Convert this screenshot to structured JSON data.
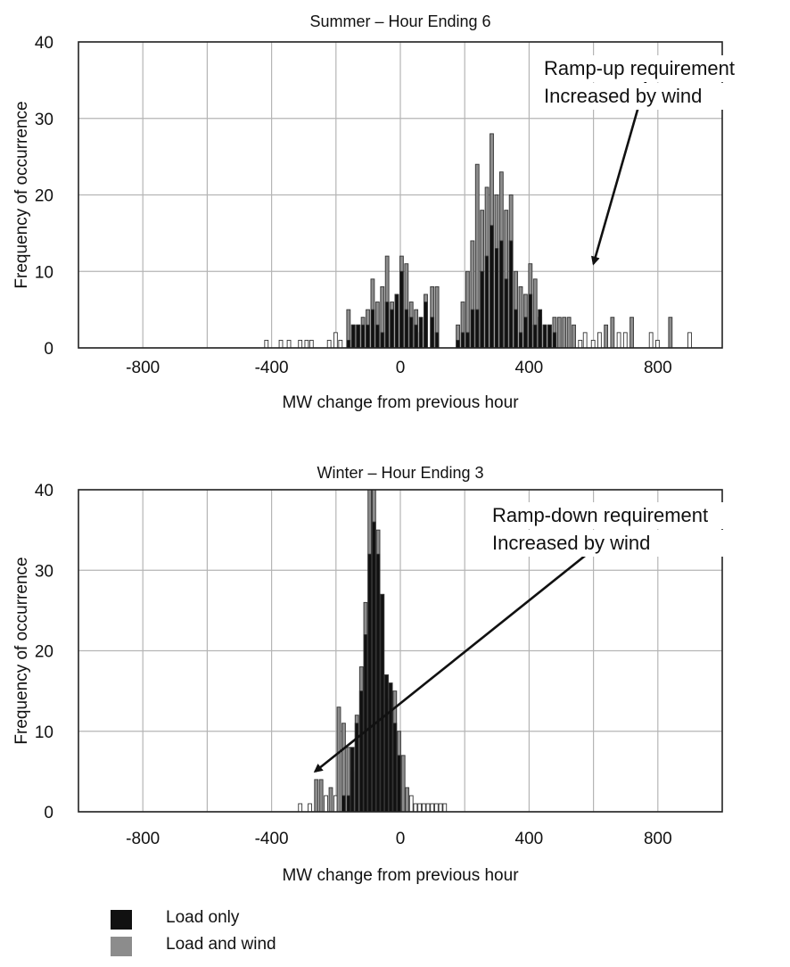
{
  "colors": {
    "load_only": "#111111",
    "load_and_wind": "#8c8c8c",
    "grid": "#b5b5b5",
    "axis": "#222222",
    "annotation": "#111111"
  },
  "legend": {
    "items": [
      {
        "label": "Load only",
        "color": "#111111"
      },
      {
        "label": "Load and wind",
        "color": "#8c8c8c"
      }
    ]
  },
  "chart_data": [
    {
      "type": "bar",
      "title": "Summer – Hour Ending 6",
      "xlabel": "MW change from previous hour",
      "ylabel": "Frequency of occurrence",
      "xlim": [
        -1000,
        1000
      ],
      "ylim": [
        0,
        40
      ],
      "xticks": [
        "-800",
        "-400",
        "0",
        "400",
        "800"
      ],
      "xtick_values": [
        -800,
        -400,
        0,
        400,
        800
      ],
      "yticks": [
        "0",
        "10",
        "20",
        "30",
        "40"
      ],
      "ytick_values": [
        0,
        10,
        20,
        30,
        40
      ],
      "grid": true,
      "bin_width": 13,
      "annotation": {
        "lines": [
          "Ramp-up requirement",
          "Increased by wind"
        ],
        "arrow_from": [
          770,
          36
        ],
        "arrow_to": [
          600,
          11
        ]
      },
      "series": [
        {
          "name": "Load and wind",
          "x": [
            -415,
            -370,
            -345,
            -310,
            -290,
            -275,
            -220,
            -200,
            -185,
            -160,
            -145,
            -130,
            -115,
            -100,
            -85,
            -70,
            -55,
            -40,
            -25,
            -10,
            5,
            20,
            35,
            50,
            65,
            80,
            100,
            115,
            180,
            195,
            210,
            225,
            240,
            255,
            270,
            285,
            300,
            315,
            330,
            345,
            360,
            375,
            390,
            405,
            420,
            435,
            450,
            465,
            480,
            495,
            510,
            525,
            540,
            560,
            575,
            600,
            620,
            640,
            660,
            680,
            700,
            720,
            780,
            800,
            840,
            900
          ],
          "values": [
            1,
            1,
            1,
            1,
            1,
            1,
            1,
            2,
            1,
            5,
            3,
            3,
            4,
            5,
            9,
            6,
            8,
            12,
            6,
            7,
            12,
            11,
            6,
            5,
            2,
            7,
            8,
            8,
            3,
            6,
            10,
            14,
            24,
            18,
            21,
            28,
            20,
            23,
            18,
            20,
            10,
            8,
            7,
            11,
            9,
            4,
            3,
            3,
            4,
            4,
            4,
            4,
            3,
            1,
            2,
            1,
            2,
            3,
            4,
            2,
            2,
            4,
            2,
            1,
            4,
            2
          ]
        },
        {
          "name": "Load only",
          "x": [
            -160,
            -145,
            -130,
            -115,
            -100,
            -85,
            -70,
            -55,
            -40,
            -25,
            -10,
            5,
            20,
            35,
            50,
            65,
            80,
            100,
            115,
            180,
            195,
            210,
            225,
            240,
            255,
            270,
            285,
            300,
            315,
            330,
            345,
            360,
            375,
            390,
            405,
            420,
            435,
            450,
            465,
            480
          ],
          "values": [
            1,
            3,
            3,
            3,
            3,
            5,
            3,
            2,
            6,
            5,
            7,
            10,
            5,
            4,
            3,
            4,
            6,
            4,
            2,
            1,
            2,
            2,
            5,
            5,
            10,
            12,
            16,
            13,
            14,
            9,
            14,
            5,
            2,
            4,
            7,
            3,
            5,
            3,
            3,
            2
          ]
        }
      ]
    },
    {
      "type": "bar",
      "title": "Winter – Hour Ending 3",
      "xlabel": "MW change from previous hour",
      "ylabel": "Frequency of occurrence",
      "xlim": [
        -1000,
        1000
      ],
      "ylim": [
        0,
        40
      ],
      "xticks": [
        "-800",
        "-400",
        "0",
        "400",
        "800"
      ],
      "xtick_values": [
        -800,
        -400,
        0,
        400,
        800
      ],
      "yticks": [
        "0",
        "10",
        "20",
        "30",
        "40"
      ],
      "ytick_values": [
        0,
        10,
        20,
        30,
        40
      ],
      "grid": true,
      "bin_width": 13,
      "annotation": {
        "lines": [
          "Ramp-down requirement",
          "Increased by wind"
        ],
        "arrow_from": [
          580,
          32
        ],
        "arrow_to": [
          -265,
          5
        ]
      },
      "series": [
        {
          "name": "Load and wind",
          "x": [
            -310,
            -280,
            -260,
            -245,
            -230,
            -215,
            -200,
            -190,
            -175,
            -160,
            -148,
            -134,
            -120,
            -107,
            -94,
            -81,
            -68,
            -55,
            -42,
            -29,
            -16,
            -3,
            10,
            22,
            35,
            48,
            61,
            74,
            87,
            100,
            113,
            126,
            139
          ],
          "values": [
            1,
            1,
            4,
            4,
            2,
            3,
            2,
            13,
            11,
            8,
            5,
            12,
            18,
            26,
            43,
            41,
            35,
            27,
            17,
            14,
            15,
            10,
            7,
            3,
            2,
            1,
            1,
            1,
            1,
            1,
            1,
            1,
            1
          ]
        },
        {
          "name": "Load only",
          "x": [
            -175,
            -160,
            -148,
            -134,
            -120,
            -107,
            -94,
            -81,
            -68,
            -55,
            -42,
            -29,
            -16,
            -3
          ],
          "values": [
            2,
            2,
            8,
            11,
            15,
            22,
            32,
            36,
            32,
            27,
            17,
            16,
            11,
            7
          ]
        }
      ]
    }
  ]
}
